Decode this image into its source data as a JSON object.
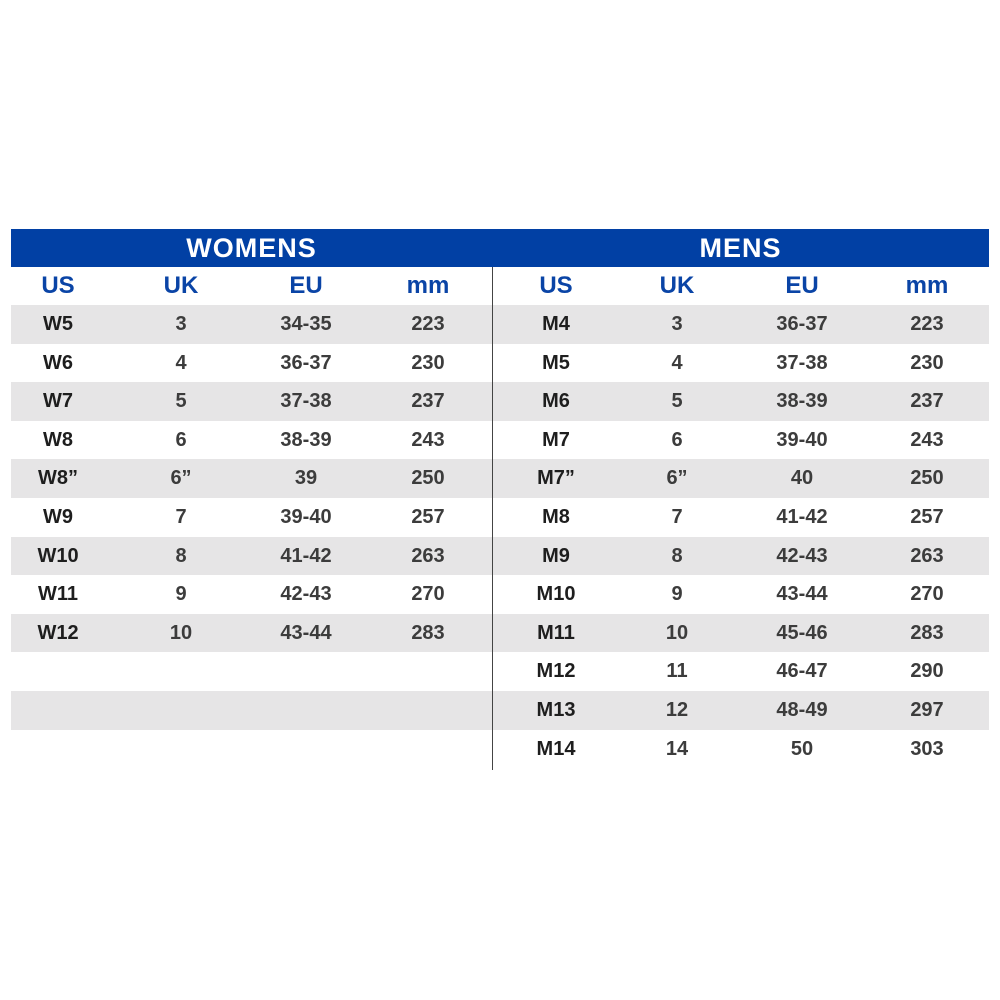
{
  "womens": {
    "title": "WOMENS",
    "headers": [
      "US",
      "UK",
      "EU",
      "mm"
    ],
    "rows": [
      [
        "W5",
        "3",
        "34-35",
        "223"
      ],
      [
        "W6",
        "4",
        "36-37",
        "230"
      ],
      [
        "W7",
        "5",
        "37-38",
        "237"
      ],
      [
        "W8",
        "6",
        "38-39",
        "243"
      ],
      [
        "W8”",
        "6”",
        "39",
        "250"
      ],
      [
        "W9",
        "7",
        "39-40",
        "257"
      ],
      [
        "W10",
        "8",
        "41-42",
        "263"
      ],
      [
        "W11",
        "9",
        "42-43",
        "270"
      ],
      [
        "W12",
        "10",
        "43-44",
        "283"
      ]
    ]
  },
  "mens": {
    "title": "MENS",
    "headers": [
      "US",
      "UK",
      "EU",
      "mm"
    ],
    "rows": [
      [
        "M4",
        "3",
        "36-37",
        "223"
      ],
      [
        "M5",
        "4",
        "37-38",
        "230"
      ],
      [
        "M6",
        "5",
        "38-39",
        "237"
      ],
      [
        "M7",
        "6",
        "39-40",
        "243"
      ],
      [
        "M7”",
        "6”",
        "40",
        "250"
      ],
      [
        "M8",
        "7",
        "41-42",
        "257"
      ],
      [
        "M9",
        "8",
        "42-43",
        "263"
      ],
      [
        "M10",
        "9",
        "43-44",
        "270"
      ],
      [
        "M11",
        "10",
        "45-46",
        "283"
      ],
      [
        "M12",
        "11",
        "46-47",
        "290"
      ],
      [
        "M13",
        "12",
        "48-49",
        "297"
      ],
      [
        "M14",
        "14",
        "50",
        "303"
      ]
    ]
  },
  "colors": {
    "header_bg": "#0140a4",
    "header_text": "#0a44a6",
    "stripe": "#e6e5e6"
  }
}
